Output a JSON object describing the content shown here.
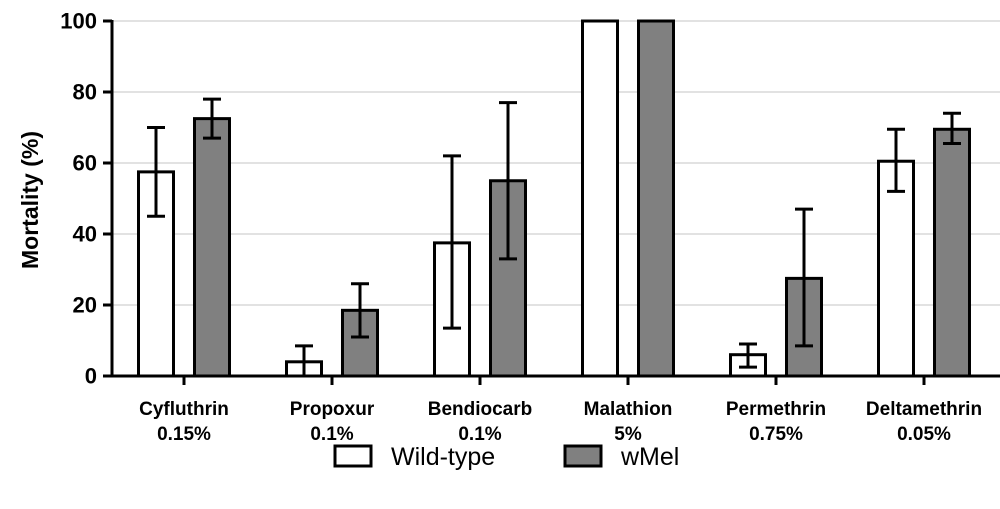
{
  "chart_data": {
    "type": "bar",
    "ylabel": "Mortality (%)",
    "xlabel": "",
    "ylim": [
      0,
      100
    ],
    "yticks": [
      0,
      20,
      40,
      60,
      80,
      100
    ],
    "grid": "horizontal",
    "legend": "bottom",
    "categories": [
      {
        "name": "Cyfluthrin",
        "dose": "0.15%"
      },
      {
        "name": "Propoxur",
        "dose": "0.1%"
      },
      {
        "name": "Bendiocarb",
        "dose": "0.1%"
      },
      {
        "name": "Malathion",
        "dose": "5%"
      },
      {
        "name": "Permethrin",
        "dose": "0.75%"
      },
      {
        "name": "Deltamethrin",
        "dose": "0.05%"
      }
    ],
    "series": [
      {
        "name": "Wild-type",
        "color": "#ffffff",
        "values": [
          57.5,
          4,
          37.5,
          100,
          6,
          60.5
        ],
        "err_low": [
          45,
          0,
          13.5,
          100,
          2.5,
          52
        ],
        "err_high": [
          70,
          8.5,
          62,
          100,
          9,
          69.5
        ]
      },
      {
        "name": "wMel",
        "color": "#808080",
        "values": [
          72.5,
          18.5,
          55,
          100,
          27.5,
          69.5
        ],
        "err_low": [
          67,
          11,
          33,
          100,
          8.5,
          65.5
        ],
        "err_high": [
          78,
          26,
          77,
          100,
          47,
          74
        ]
      }
    ]
  }
}
